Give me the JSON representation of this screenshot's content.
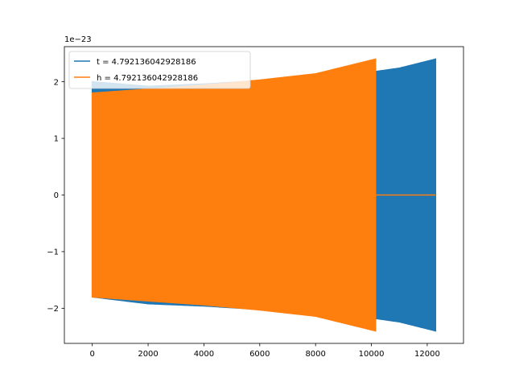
{
  "chart_data": {
    "type": "line",
    "title": "",
    "xlabel": "",
    "ylabel": "",
    "y_offset_label": "1e−23",
    "xlim": [
      -1000,
      13300
    ],
    "ylim": [
      -2.62,
      2.62
    ],
    "x_ticks": [
      0,
      2000,
      4000,
      6000,
      8000,
      10000,
      12000
    ],
    "x_tick_labels": [
      "0",
      "2000",
      "4000",
      "6000",
      "8000",
      "10000",
      "12000"
    ],
    "y_ticks": [
      -2,
      -1,
      0,
      1,
      2
    ],
    "y_tick_labels": [
      "−2",
      "−1",
      "0",
      "1",
      "2"
    ],
    "grid": false,
    "legend_position": "upper-left",
    "series": [
      {
        "name": "t = 4.792136042928186",
        "color": "#1f77b4",
        "x_start": 0,
        "x_end": 12300,
        "envelope_upper": [
          [
            0,
            2.0
          ],
          [
            2000,
            1.92
          ],
          [
            4000,
            1.96
          ],
          [
            6000,
            2.02
          ],
          [
            8000,
            2.09
          ],
          [
            10000,
            2.17
          ],
          [
            11000,
            2.24
          ],
          [
            12300,
            2.4
          ]
        ],
        "envelope_lower": [
          [
            0,
            -1.8
          ],
          [
            2000,
            -1.92
          ],
          [
            4000,
            -1.96
          ],
          [
            6000,
            -2.02
          ],
          [
            8000,
            -2.09
          ],
          [
            10000,
            -2.17
          ],
          [
            11000,
            -2.24
          ],
          [
            12300,
            -2.4
          ]
        ]
      },
      {
        "name": "h = 4.792136042928186",
        "color": "#ff7f0e",
        "x_start": 0,
        "x_end": 10150,
        "envelope_upper": [
          [
            0,
            1.8
          ],
          [
            2000,
            1.87
          ],
          [
            4000,
            1.94
          ],
          [
            6000,
            2.03
          ],
          [
            8000,
            2.14
          ],
          [
            10150,
            2.4
          ]
        ],
        "envelope_lower": [
          [
            0,
            -1.8
          ],
          [
            2000,
            -1.87
          ],
          [
            4000,
            -1.94
          ],
          [
            6000,
            -2.03
          ],
          [
            8000,
            -2.14
          ],
          [
            10150,
            -2.4
          ]
        ],
        "flat_segment": {
          "x_start": 10150,
          "x_end": 12300,
          "y": 0
        }
      }
    ]
  }
}
